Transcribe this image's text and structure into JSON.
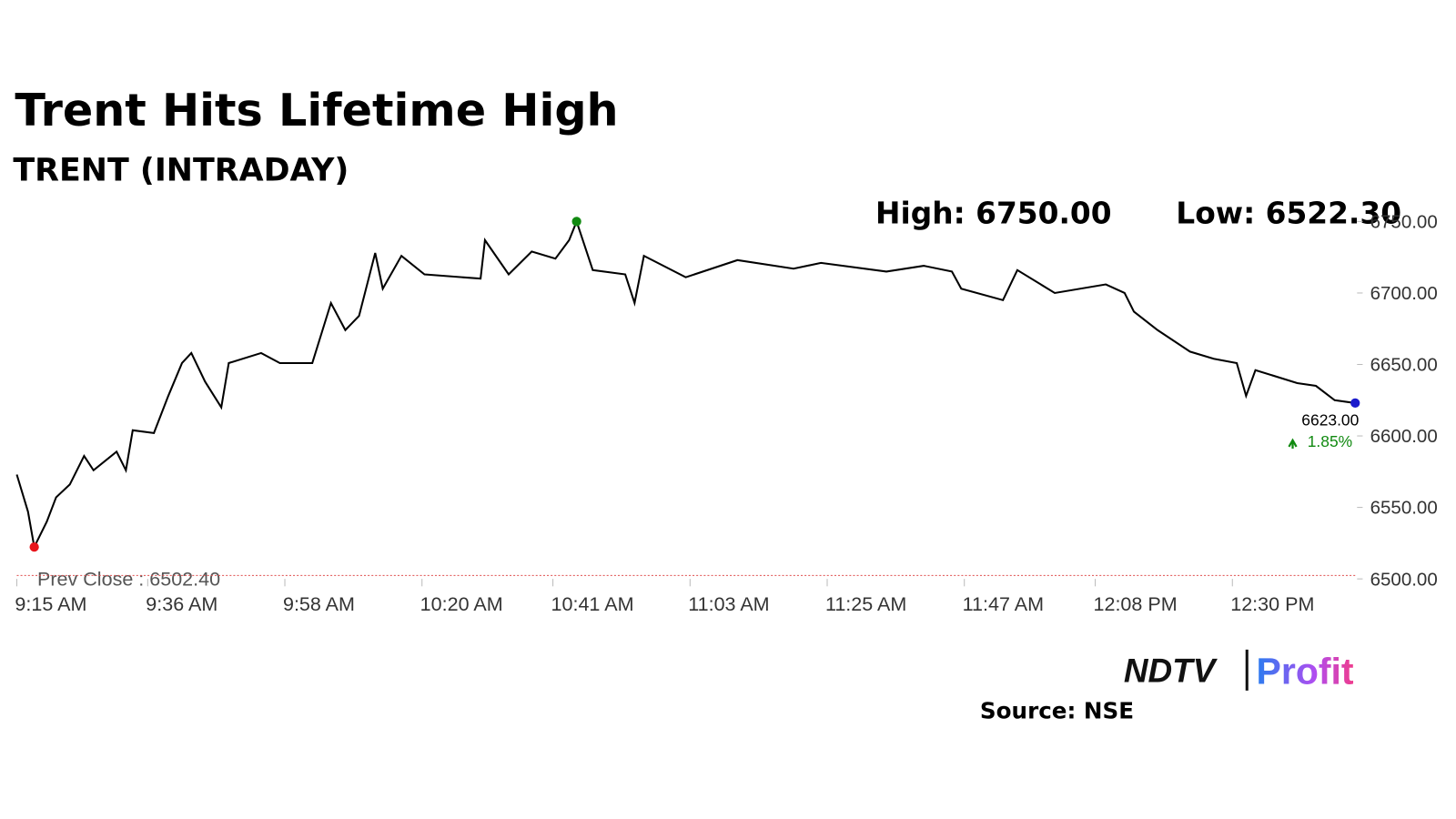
{
  "chart_data": {
    "type": "line",
    "title": "Trent Hits Lifetime High",
    "subtitle": "TRENT (INTRADAY)",
    "high_label": "High: 6750.00",
    "low_label": "Low: 6522.30",
    "last_label": "6623.00",
    "change_label": "1.85%",
    "prev_close": {
      "value": 6502.4,
      "label": "Prev Close : 6502.40"
    },
    "source": "Source: NSE",
    "logo": [
      "NDTV",
      "Profit"
    ],
    "color": "#000000",
    "x": [
      555,
      556.8,
      557.8,
      559.8,
      561.3,
      563.5,
      565.8,
      567.3,
      571,
      572.5,
      573.6,
      577,
      579.3,
      581.5,
      583,
      585.2,
      587.8,
      589,
      594.2,
      597.2,
      602.4,
      605.4,
      607.7,
      609.9,
      612.5,
      613.7,
      616.7,
      620.4,
      629.4,
      630.1,
      633.9,
      637.6,
      641.4,
      643.6,
      644.8,
      647.4,
      652.6,
      654.1,
      655.6,
      662.3,
      670.6,
      679.6,
      684,
      694.5,
      700.5,
      705,
      706.5,
      713.2,
      715.5,
      721.5,
      729.7,
      732.7,
      734.2,
      738,
      743.2,
      747,
      750.7,
      752.2,
      753.7,
      760.4,
      763.4,
      766.4,
      769.7
    ],
    "values": [
      6573,
      6547,
      6522.3,
      6540,
      6557,
      6566,
      6586,
      6576,
      6589,
      6576,
      6604,
      6602,
      6628,
      6651,
      6658,
      6638,
      6620,
      6651,
      6658,
      6651,
      6651,
      6693,
      6674,
      6684,
      6728,
      6703,
      6726,
      6713,
      6710,
      6737,
      6713,
      6729,
      6724,
      6737,
      6750,
      6716,
      6713,
      6693,
      6726,
      6711,
      6723,
      6717,
      6721,
      6715,
      6719,
      6715,
      6703,
      6695,
      6716,
      6700,
      6706,
      6700,
      6687,
      6674,
      6659,
      6654,
      6651,
      6628,
      6646,
      6637,
      6635,
      6625,
      6623
    ],
    "xlim": [
      555,
      770
    ],
    "xticks": [
      {
        "value": 555,
        "label": "9:15 AM"
      },
      {
        "value": 576,
        "label": "9:36 AM"
      },
      {
        "value": 598,
        "label": "9:58 AM"
      },
      {
        "value": 620,
        "label": "10:20 AM"
      },
      {
        "value": 641,
        "label": "10:41 AM"
      },
      {
        "value": 663,
        "label": "11:03 AM"
      },
      {
        "value": 685,
        "label": "11:25 AM"
      },
      {
        "value": 707,
        "label": "11:47 AM"
      },
      {
        "value": 728,
        "label": "12:08 PM"
      },
      {
        "value": 750,
        "label": "12:30 PM"
      }
    ],
    "ylim": [
      6500,
      6750
    ],
    "yticks": [
      {
        "value": 6500,
        "label": "6500.00"
      },
      {
        "value": 6550,
        "label": "6550.00"
      },
      {
        "value": 6600,
        "label": "6600.00"
      },
      {
        "value": 6650,
        "label": "6650.00"
      },
      {
        "value": 6700,
        "label": "6700.00"
      },
      {
        "value": 6750,
        "label": "6750.00"
      }
    ],
    "low_index": 2,
    "high_index": 34,
    "low_color": "#e8141b",
    "high_color": "#118a11",
    "last_color": "#1a1acc"
  }
}
